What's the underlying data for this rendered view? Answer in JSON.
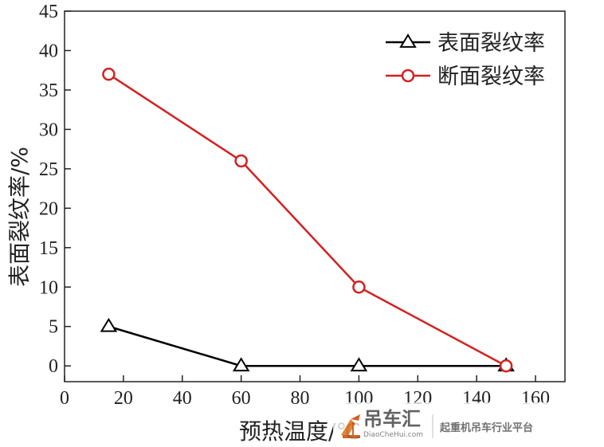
{
  "chart_data": {
    "type": "line",
    "title": "",
    "xlabel": "预热温度/℃",
    "ylabel": "表面裂纹率/%",
    "xlim": [
      0,
      170
    ],
    "ylim": [
      -2,
      45
    ],
    "xticks": [
      0,
      20,
      40,
      60,
      80,
      100,
      120,
      140,
      160
    ],
    "yticks": [
      0,
      5,
      10,
      15,
      20,
      25,
      30,
      35,
      40,
      45
    ],
    "grid": false,
    "legend_position": "top-right",
    "series": [
      {
        "name": "表面裂纹率",
        "color": "#000000",
        "marker": "triangle",
        "points": [
          {
            "x": 15,
            "y": 5
          },
          {
            "x": 60,
            "y": 0
          },
          {
            "x": 100,
            "y": 0
          },
          {
            "x": 150,
            "y": 0
          }
        ]
      },
      {
        "name": "断面裂纹率",
        "color": "#d42020",
        "marker": "circle",
        "points": [
          {
            "x": 15,
            "y": 37
          },
          {
            "x": 60,
            "y": 26
          },
          {
            "x": 100,
            "y": 10
          },
          {
            "x": 150,
            "y": 0
          }
        ]
      }
    ]
  },
  "watermark": {
    "brand": "吊车汇",
    "site": "DiaoCheHui.com",
    "slogan": "起重机吊车行业平台",
    "icon": "crane-logo-icon"
  }
}
